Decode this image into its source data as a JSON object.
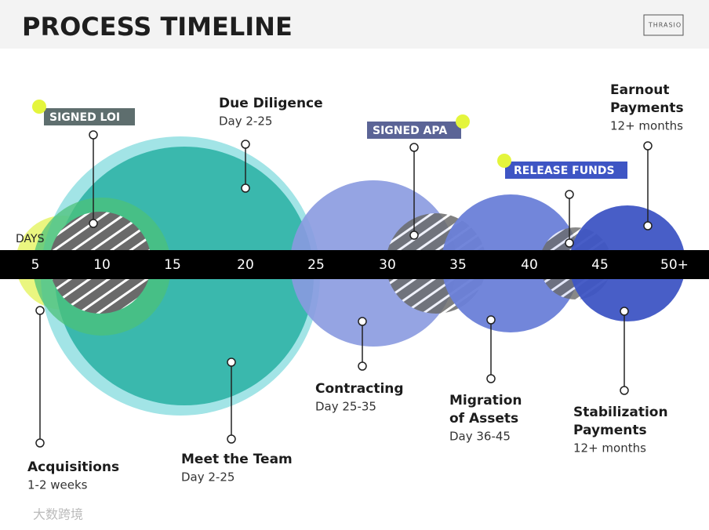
{
  "header": {
    "title": "PROCESS TIMELINE",
    "logo": "THRASIO"
  },
  "axis": {
    "label": "DAYS",
    "ticks": [
      "5",
      "10",
      "15",
      "20",
      "25",
      "30",
      "35",
      "40",
      "45",
      "50+"
    ]
  },
  "milestones": [
    {
      "label": "SIGNED LOI"
    },
    {
      "label": "SIGNED APA"
    },
    {
      "label": "RELEASE FUNDS"
    }
  ],
  "stages": [
    {
      "name": [
        "Due Diligence"
      ],
      "detail": "Day 2-25"
    },
    {
      "name": [
        "Earnout",
        "Payments"
      ],
      "detail": "12+ months"
    },
    {
      "name": [
        "Acquisitions"
      ],
      "detail": "1-2 weeks"
    },
    {
      "name": [
        "Meet the Team"
      ],
      "detail": "Day 2-25"
    },
    {
      "name": [
        "Contracting"
      ],
      "detail": "Day 25-35"
    },
    {
      "name": [
        "Migration",
        "of Assets"
      ],
      "detail": "Day 36-45"
    },
    {
      "name": [
        "Stabilization",
        "Payments"
      ],
      "detail": "12+ months"
    }
  ],
  "watermark": "大数跨境"
}
